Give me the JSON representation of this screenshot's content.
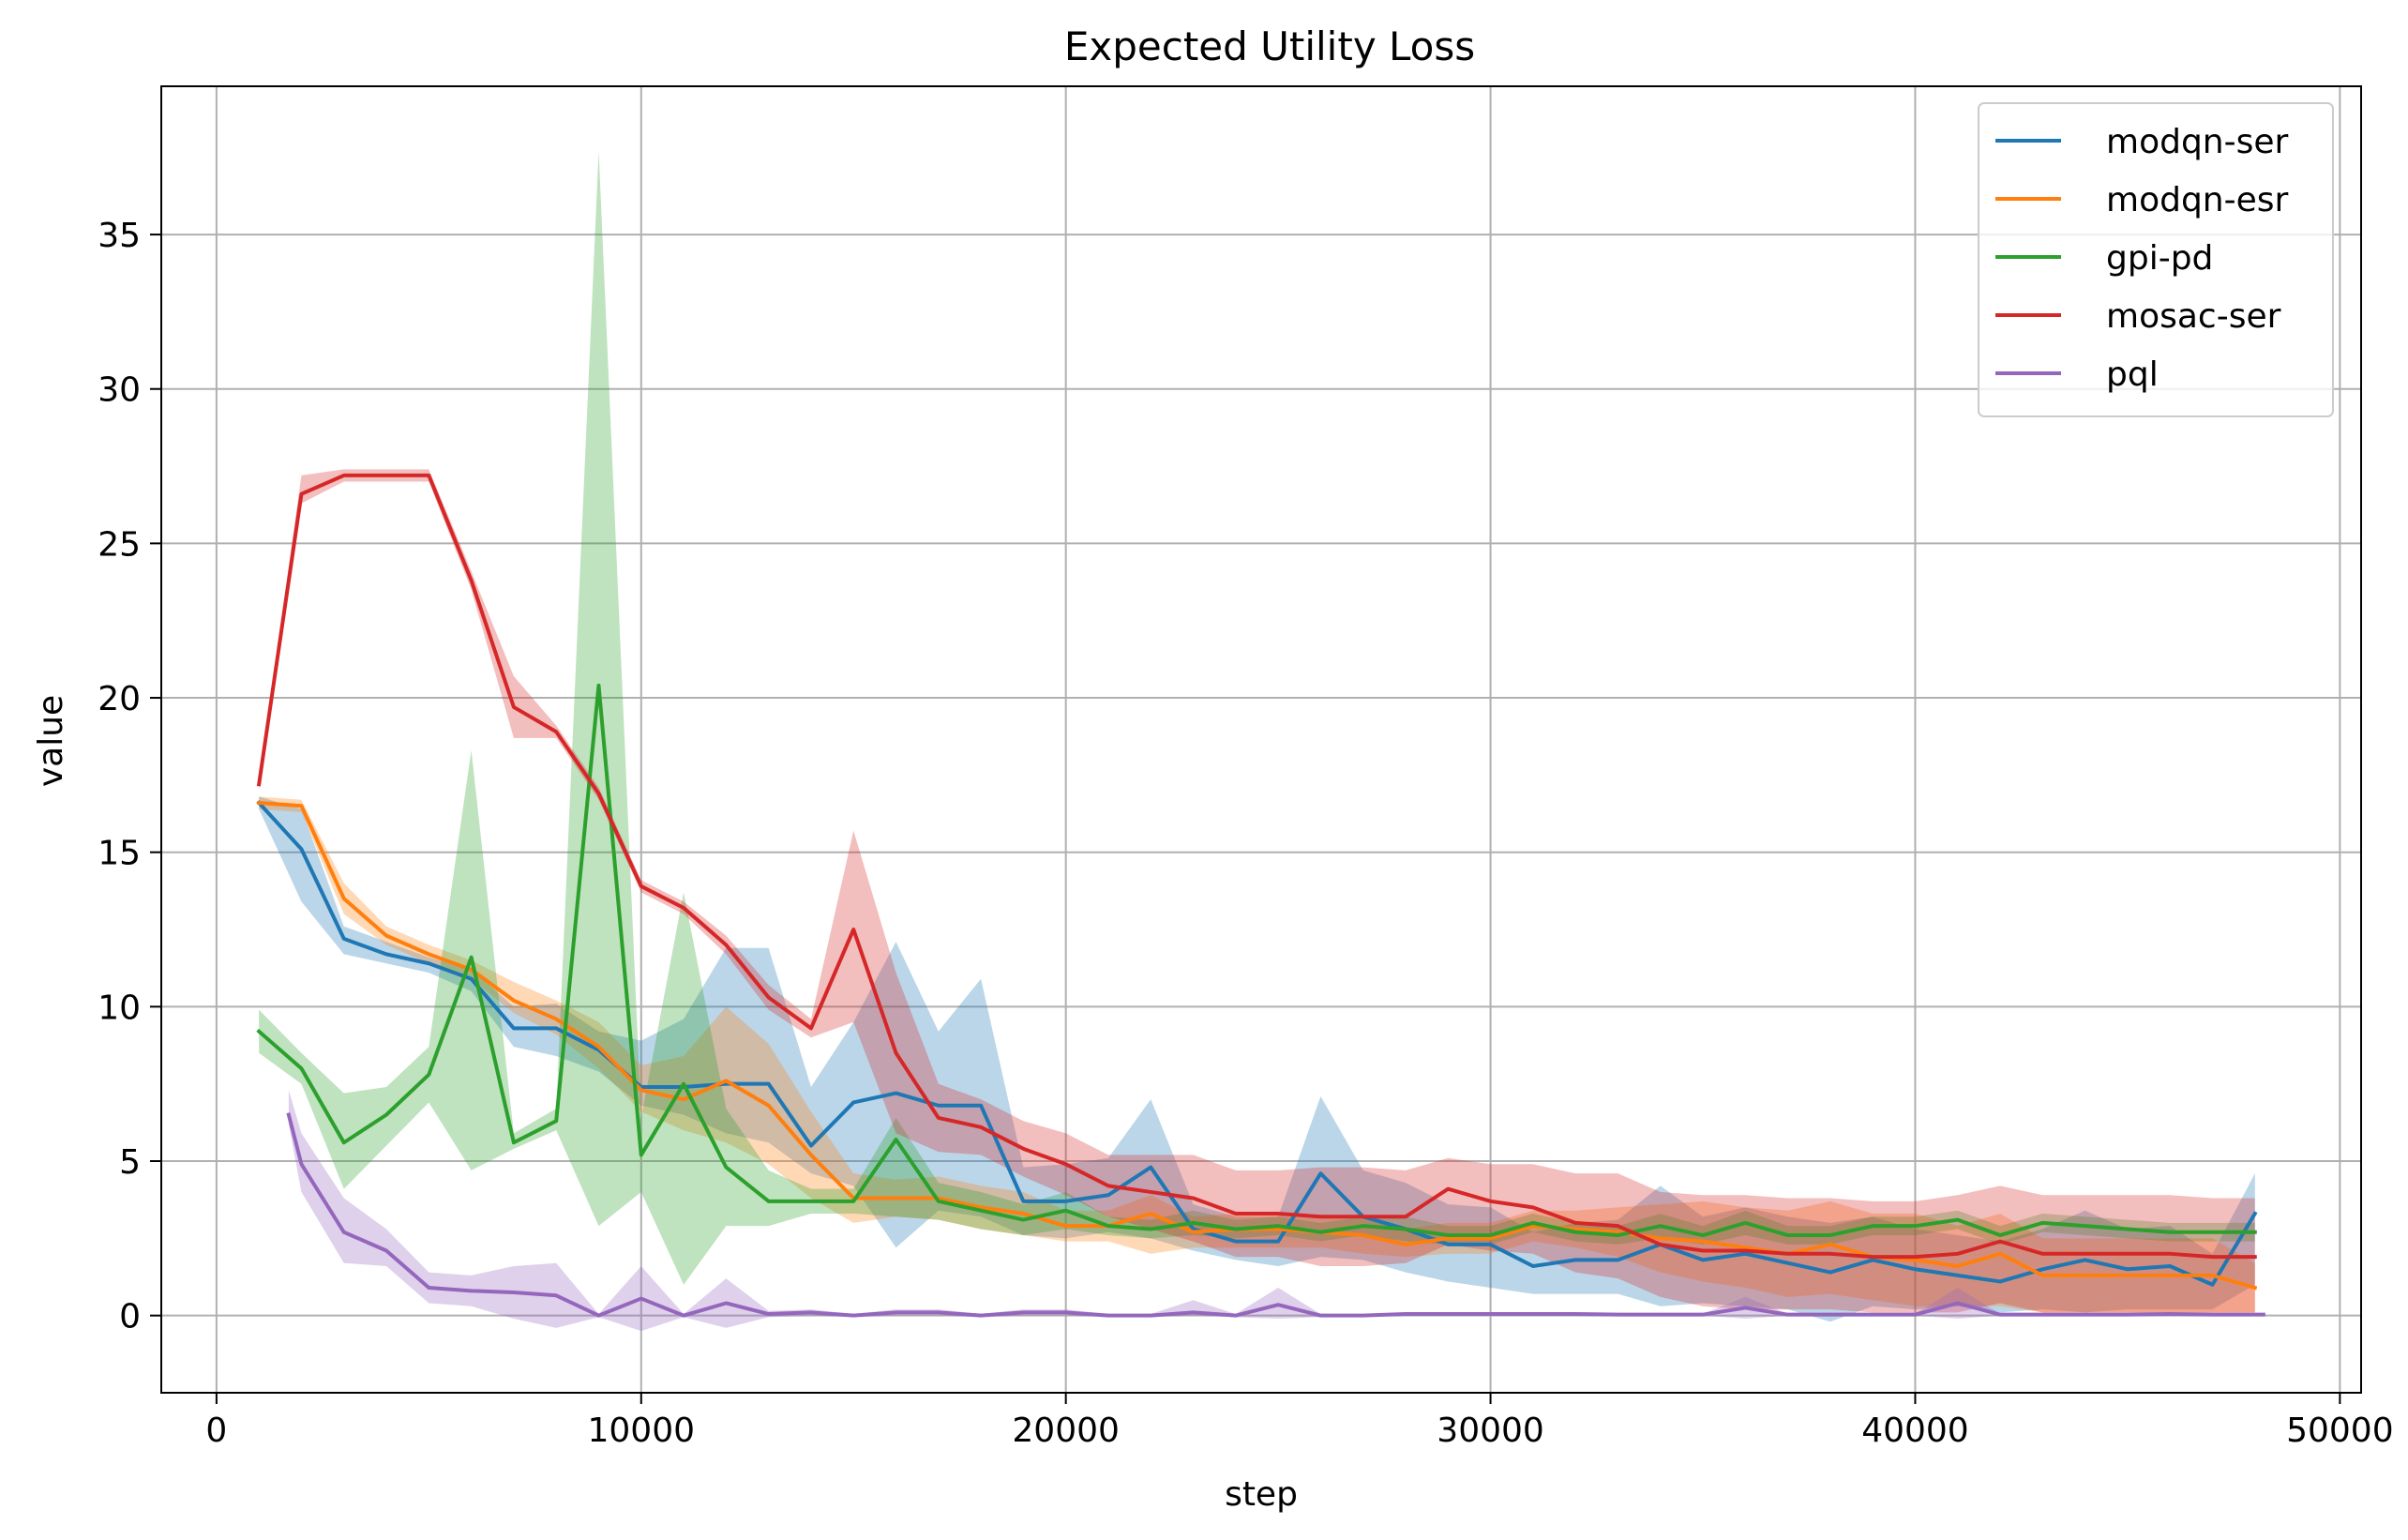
{
  "chart_data": {
    "type": "line",
    "title": "Expected Utility Loss",
    "xlabel": "step",
    "ylabel": "value",
    "xlim": [
      -1300,
      50500
    ],
    "ylim": [
      -2.5,
      39.8
    ],
    "xticks": [
      0,
      10000,
      20000,
      30000,
      40000,
      50000
    ],
    "yticks": [
      0,
      5,
      10,
      15,
      20,
      25,
      30,
      35
    ],
    "grid": true,
    "legend_position": "top-right",
    "series": [
      {
        "name": "modqn-ser",
        "color": "#1f77b4",
        "x": [
          1000,
          2000,
          3000,
          4000,
          5000,
          6000,
          7000,
          8000,
          9000,
          10000,
          11000,
          12000,
          13000,
          14000,
          15000,
          16000,
          17000,
          18000,
          19000,
          20000,
          21000,
          22000,
          23000,
          24000,
          25000,
          26000,
          27000,
          28000,
          29000,
          30000,
          31000,
          32000,
          33000,
          34000,
          35000,
          36000,
          37000,
          38000,
          39000,
          40000,
          41000,
          42000,
          43000,
          44000,
          45000,
          46000,
          47000,
          48000
        ],
        "y": [
          16.6,
          15.1,
          12.2,
          11.7,
          11.4,
          10.9,
          9.3,
          9.3,
          8.6,
          7.4,
          7.4,
          7.5,
          7.5,
          5.5,
          6.9,
          7.2,
          6.8,
          6.8,
          3.7,
          3.7,
          3.9,
          4.8,
          2.8,
          2.4,
          2.4,
          4.6,
          3.2,
          2.8,
          2.3,
          2.3,
          1.6,
          1.8,
          1.8,
          2.3,
          1.8,
          2.0,
          1.7,
          1.4,
          1.8,
          1.5,
          1.3,
          1.1,
          1.5,
          1.8,
          1.5,
          1.6,
          1.0,
          3.3
        ],
        "lower": [
          16.4,
          13.4,
          11.7,
          11.4,
          11.1,
          10.5,
          8.7,
          8.4,
          7.9,
          6.8,
          6.5,
          5.9,
          5.6,
          4.6,
          4.2,
          2.2,
          3.4,
          3.2,
          2.6,
          2.5,
          2.7,
          2.5,
          2.1,
          1.8,
          1.6,
          1.9,
          1.8,
          1.4,
          1.1,
          0.9,
          0.7,
          0.7,
          0.7,
          0.3,
          0.4,
          0.3,
          0.2,
          -0.2,
          0.3,
          0.2,
          0.3,
          0.1,
          0.2,
          0.1,
          0.2,
          0.2,
          0.2,
          1.0
        ],
        "upper": [
          16.8,
          16.4,
          12.6,
          12.1,
          11.6,
          11.2,
          10.0,
          10.1,
          9.2,
          8.9,
          9.6,
          11.9,
          11.9,
          7.4,
          9.5,
          12.1,
          9.2,
          10.9,
          4.8,
          4.9,
          5.1,
          7.0,
          3.6,
          3.2,
          3.2,
          7.1,
          4.7,
          4.3,
          3.6,
          3.5,
          2.7,
          3.0,
          3.1,
          4.2,
          3.2,
          3.5,
          3.2,
          3.0,
          3.2,
          2.8,
          2.6,
          2.4,
          2.8,
          3.4,
          2.8,
          2.9,
          2.0,
          4.6
        ]
      },
      {
        "name": "modqn-esr",
        "color": "#ff7f0e",
        "x": [
          1000,
          2000,
          3000,
          4000,
          5000,
          6000,
          7000,
          8000,
          9000,
          10000,
          11000,
          12000,
          13000,
          14000,
          15000,
          16000,
          17000,
          18000,
          19000,
          20000,
          21000,
          22000,
          23000,
          24000,
          25000,
          26000,
          27000,
          28000,
          29000,
          30000,
          31000,
          32000,
          33000,
          34000,
          35000,
          36000,
          37000,
          38000,
          39000,
          40000,
          41000,
          42000,
          43000,
          44000,
          45000,
          46000,
          47000,
          48000
        ],
        "y": [
          16.6,
          16.5,
          13.5,
          12.3,
          11.7,
          11.2,
          10.2,
          9.6,
          8.7,
          7.3,
          7.0,
          7.6,
          6.8,
          5.2,
          3.8,
          3.8,
          3.8,
          3.5,
          3.3,
          2.9,
          2.9,
          3.3,
          2.7,
          2.8,
          2.8,
          2.7,
          2.6,
          2.3,
          2.5,
          2.5,
          2.9,
          2.8,
          2.7,
          2.5,
          2.4,
          2.2,
          2.0,
          2.3,
          1.9,
          1.8,
          1.6,
          2.0,
          1.3,
          1.3,
          1.3,
          1.3,
          1.3,
          0.9
        ],
        "lower": [
          16.4,
          16.3,
          13.0,
          12.0,
          11.4,
          10.9,
          9.8,
          9.1,
          8.0,
          6.6,
          6.0,
          5.6,
          4.9,
          3.8,
          3.0,
          3.2,
          3.1,
          2.8,
          2.6,
          2.4,
          2.4,
          2.0,
          2.2,
          2.2,
          2.2,
          2.2,
          2.0,
          1.9,
          2.0,
          2.0,
          2.4,
          2.2,
          1.9,
          1.4,
          1.1,
          0.9,
          0.6,
          0.7,
          0.5,
          0.3,
          0.3,
          0.3,
          0.1,
          0.1,
          0.1,
          0.1,
          0.1,
          0.1
        ],
        "upper": [
          16.8,
          16.7,
          14.0,
          12.6,
          12.0,
          11.5,
          10.8,
          10.2,
          9.5,
          8.1,
          8.4,
          10.0,
          8.8,
          6.6,
          4.6,
          4.4,
          4.5,
          4.2,
          4.0,
          3.4,
          3.4,
          3.9,
          3.2,
          3.3,
          3.3,
          3.2,
          3.1,
          2.8,
          3.0,
          3.0,
          3.4,
          3.4,
          3.5,
          3.6,
          3.7,
          3.5,
          3.4,
          3.7,
          3.3,
          3.3,
          2.9,
          3.3,
          2.5,
          2.5,
          2.5,
          2.5,
          2.5,
          1.7
        ]
      },
      {
        "name": "gpi-pd",
        "color": "#2ca02c",
        "x": [
          1000,
          2000,
          3000,
          4000,
          5000,
          6000,
          7000,
          8000,
          9000,
          10000,
          11000,
          12000,
          13000,
          14000,
          15000,
          16000,
          17000,
          18000,
          19000,
          20000,
          21000,
          22000,
          23000,
          24000,
          25000,
          26000,
          27000,
          28000,
          29000,
          30000,
          31000,
          32000,
          33000,
          34000,
          35000,
          36000,
          37000,
          38000,
          39000,
          40000,
          41000,
          42000,
          43000,
          44000,
          45000,
          46000,
          47000,
          48000
        ],
        "y": [
          9.2,
          8.0,
          5.6,
          6.5,
          7.8,
          11.6,
          5.6,
          6.3,
          20.4,
          5.2,
          7.5,
          4.8,
          3.7,
          3.7,
          3.7,
          5.7,
          3.7,
          3.4,
          3.1,
          3.4,
          2.9,
          2.8,
          3.0,
          2.8,
          2.9,
          2.7,
          2.9,
          2.8,
          2.6,
          2.6,
          3.0,
          2.7,
          2.6,
          2.9,
          2.6,
          3.0,
          2.6,
          2.6,
          2.9,
          2.9,
          3.1,
          2.6,
          3.0,
          2.9,
          2.8,
          2.7,
          2.7,
          2.7
        ],
        "lower": [
          8.5,
          7.5,
          4.1,
          5.5,
          6.9,
          4.7,
          5.4,
          6.0,
          2.9,
          4.0,
          1.0,
          2.9,
          2.9,
          3.3,
          3.3,
          3.2,
          3.1,
          2.8,
          2.6,
          2.8,
          2.6,
          2.5,
          2.6,
          2.5,
          2.6,
          2.4,
          2.6,
          2.4,
          2.3,
          2.3,
          2.7,
          2.4,
          2.3,
          2.5,
          2.3,
          2.6,
          2.3,
          2.3,
          2.6,
          2.6,
          2.8,
          2.3,
          2.7,
          2.6,
          2.5,
          2.4,
          2.4,
          2.4
        ],
        "upper": [
          9.9,
          8.5,
          7.2,
          7.4,
          8.7,
          18.3,
          5.9,
          6.7,
          37.7,
          6.4,
          13.7,
          6.7,
          4.7,
          4.1,
          4.1,
          6.4,
          4.3,
          4.0,
          3.6,
          4.0,
          3.2,
          3.1,
          3.4,
          3.1,
          3.2,
          3.0,
          3.2,
          3.2,
          2.9,
          2.9,
          3.3,
          3.0,
          2.9,
          3.3,
          2.9,
          3.4,
          2.9,
          2.9,
          3.2,
          3.2,
          3.4,
          2.9,
          3.3,
          3.2,
          3.1,
          3.0,
          3.0,
          3.0
        ]
      },
      {
        "name": "mosac-ser",
        "color": "#d62728",
        "x": [
          1000,
          2000,
          3000,
          4000,
          5000,
          6000,
          7000,
          8000,
          9000,
          10000,
          11000,
          12000,
          13000,
          14000,
          15000,
          16000,
          17000,
          18000,
          19000,
          20000,
          21000,
          22000,
          23000,
          24000,
          25000,
          26000,
          27000,
          28000,
          29000,
          30000,
          31000,
          32000,
          33000,
          34000,
          35000,
          36000,
          37000,
          38000,
          39000,
          40000,
          41000,
          42000,
          43000,
          44000,
          45000,
          46000,
          47000,
          48000
        ],
        "y": [
          17.2,
          26.6,
          27.2,
          27.2,
          27.2,
          23.8,
          19.7,
          18.9,
          16.9,
          13.9,
          13.2,
          12.0,
          10.3,
          9.3,
          12.5,
          8.5,
          6.4,
          6.1,
          5.4,
          4.9,
          4.2,
          4.0,
          3.8,
          3.3,
          3.3,
          3.2,
          3.2,
          3.2,
          4.1,
          3.7,
          3.5,
          3.0,
          2.9,
          2.3,
          2.1,
          2.1,
          2.0,
          2.0,
          1.9,
          1.9,
          2.0,
          2.4,
          2.0,
          2.0,
          2.0,
          2.0,
          1.9,
          1.9
        ],
        "lower": [
          17.0,
          26.3,
          27.0,
          27.0,
          27.0,
          23.5,
          18.7,
          18.7,
          16.7,
          13.7,
          13.0,
          11.7,
          9.9,
          9.0,
          9.5,
          5.9,
          5.3,
          5.2,
          4.5,
          3.9,
          3.2,
          2.8,
          2.4,
          1.9,
          1.9,
          1.6,
          1.6,
          1.7,
          2.3,
          2.1,
          2.0,
          1.4,
          1.2,
          0.6,
          0.3,
          0.2,
          0.2,
          0.2,
          0.1,
          0.1,
          0.1,
          0.4,
          0.1,
          0.1,
          0.1,
          0.1,
          0.1,
          0.1
        ],
        "upper": [
          17.4,
          27.2,
          27.4,
          27.4,
          27.4,
          24.1,
          20.7,
          19.1,
          17.1,
          14.1,
          13.4,
          12.3,
          10.7,
          9.6,
          15.7,
          11.1,
          7.5,
          7.0,
          6.3,
          5.9,
          5.2,
          5.2,
          5.2,
          4.7,
          4.7,
          4.8,
          4.8,
          4.7,
          5.1,
          4.9,
          4.9,
          4.6,
          4.6,
          4.0,
          3.9,
          3.9,
          3.8,
          3.8,
          3.7,
          3.7,
          3.9,
          4.2,
          3.9,
          3.9,
          3.9,
          3.9,
          3.8,
          3.8
        ]
      },
      {
        "name": "pql",
        "color": "#9467bd",
        "x": [
          1700,
          2000,
          3000,
          4000,
          5000,
          6000,
          7000,
          8000,
          9000,
          10000,
          11000,
          12000,
          13000,
          14000,
          15000,
          16000,
          17000,
          18000,
          19000,
          20000,
          21000,
          22000,
          23000,
          24000,
          25000,
          26000,
          27000,
          28000,
          29000,
          30000,
          31000,
          32000,
          33000,
          34000,
          35000,
          36000,
          37000,
          38000,
          39000,
          40000,
          41000,
          42000,
          43000,
          44000,
          45000,
          46000,
          47000,
          48200
        ],
        "y": [
          6.5,
          4.9,
          2.7,
          2.1,
          0.9,
          0.8,
          0.75,
          0.65,
          0.0,
          0.55,
          0.0,
          0.4,
          0.05,
          0.1,
          0.0,
          0.1,
          0.1,
          0.0,
          0.1,
          0.1,
          0.0,
          0.0,
          0.1,
          0.0,
          0.35,
          0.0,
          0.0,
          0.05,
          0.05,
          0.05,
          0.05,
          0.05,
          0.03,
          0.03,
          0.03,
          0.25,
          0.03,
          0.03,
          0.03,
          0.03,
          0.4,
          0.03,
          0.03,
          0.03,
          0.03,
          0.05,
          0.03,
          0.03
        ],
        "lower": [
          6.2,
          4.0,
          1.7,
          1.6,
          0.4,
          0.3,
          -0.1,
          -0.4,
          -0.05,
          -0.5,
          -0.05,
          -0.4,
          -0.05,
          0.0,
          -0.05,
          0.0,
          0.0,
          -0.05,
          0.0,
          0.0,
          -0.05,
          -0.05,
          0.0,
          -0.05,
          -0.1,
          -0.05,
          -0.05,
          0.0,
          0.0,
          0.0,
          0.0,
          0.0,
          0.0,
          0.0,
          0.0,
          -0.1,
          0.0,
          0.0,
          0.0,
          0.0,
          -0.1,
          0.0,
          0.0,
          0.0,
          0.0,
          0.0,
          0.0,
          0.0
        ],
        "upper": [
          7.3,
          5.9,
          3.8,
          2.8,
          1.4,
          1.3,
          1.6,
          1.7,
          0.05,
          1.6,
          0.05,
          1.2,
          0.15,
          0.2,
          0.05,
          0.2,
          0.2,
          0.05,
          0.2,
          0.2,
          0.05,
          0.05,
          0.5,
          0.05,
          0.9,
          0.05,
          0.05,
          0.1,
          0.1,
          0.1,
          0.1,
          0.1,
          0.06,
          0.06,
          0.06,
          0.6,
          0.06,
          0.06,
          0.06,
          0.06,
          0.9,
          0.06,
          0.06,
          0.06,
          0.06,
          0.1,
          0.06,
          0.06
        ]
      }
    ]
  }
}
